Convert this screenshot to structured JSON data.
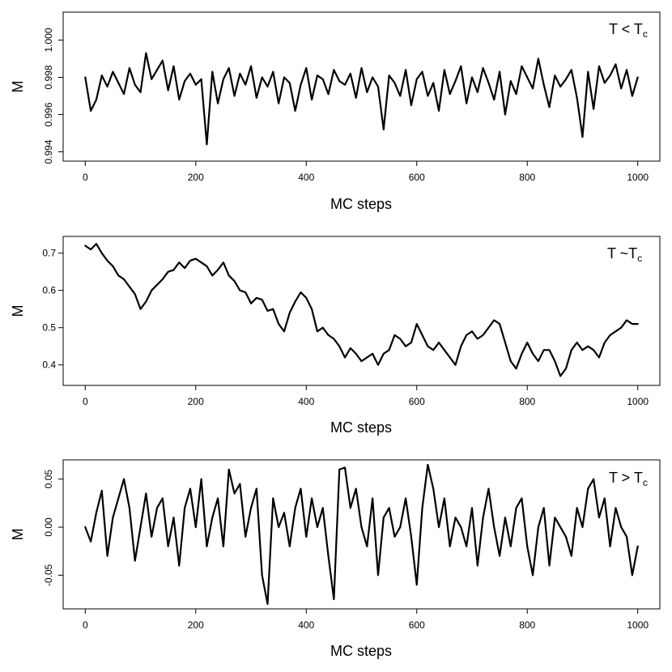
{
  "chart_data": [
    {
      "type": "line",
      "xlabel": "MC steps",
      "ylabel": "M",
      "annotation": {
        "text": "T < T",
        "sub": "c"
      },
      "annotation_position": "top-right",
      "xlim": [
        -40,
        1040
      ],
      "ylim": [
        0.9935,
        1.0015
      ],
      "xticks": [
        0,
        200,
        400,
        600,
        800,
        1000
      ],
      "yticks": [
        0.994,
        0.996,
        0.998,
        1.0
      ],
      "ytick_labels": [
        "0.994",
        "0.996",
        "0.998",
        "1.000"
      ],
      "ytick_rotated": true,
      "grid": false,
      "series": [
        {
          "x": [
            0,
            10,
            20,
            30,
            40,
            50,
            60,
            70,
            80,
            90,
            100,
            110,
            120,
            130,
            140,
            150,
            160,
            170,
            180,
            190,
            200,
            210,
            220,
            230,
            240,
            250,
            260,
            270,
            280,
            290,
            300,
            310,
            320,
            330,
            340,
            350,
            360,
            370,
            380,
            390,
            400,
            410,
            420,
            430,
            440,
            450,
            460,
            470,
            480,
            490,
            500,
            510,
            520,
            530,
            540,
            550,
            560,
            570,
            580,
            590,
            600,
            610,
            620,
            630,
            640,
            650,
            660,
            670,
            680,
            690,
            700,
            710,
            720,
            730,
            740,
            750,
            760,
            770,
            780,
            790,
            800,
            810,
            820,
            830,
            840,
            850,
            860,
            870,
            880,
            890,
            900,
            910,
            920,
            930,
            940,
            950,
            960,
            970,
            980,
            990,
            1000
          ],
          "values": [
            0.998,
            0.9962,
            0.9968,
            0.9981,
            0.9975,
            0.9983,
            0.9977,
            0.9971,
            0.9985,
            0.9976,
            0.9972,
            0.9993,
            0.9979,
            0.9984,
            0.9989,
            0.9973,
            0.9986,
            0.9968,
            0.9978,
            0.9982,
            0.9976,
            0.9979,
            0.9944,
            0.9983,
            0.9966,
            0.9979,
            0.9985,
            0.997,
            0.9982,
            0.9976,
            0.9986,
            0.9969,
            0.998,
            0.9975,
            0.9983,
            0.9966,
            0.998,
            0.9977,
            0.9962,
            0.9976,
            0.9985,
            0.9968,
            0.9981,
            0.9979,
            0.9971,
            0.9984,
            0.9978,
            0.9976,
            0.9982,
            0.9969,
            0.9985,
            0.9972,
            0.998,
            0.9975,
            0.9952,
            0.9981,
            0.9977,
            0.997,
            0.9984,
            0.9965,
            0.9979,
            0.9983,
            0.997,
            0.9977,
            0.9962,
            0.9984,
            0.9971,
            0.9978,
            0.9986,
            0.9966,
            0.998,
            0.9972,
            0.9985,
            0.9977,
            0.9968,
            0.9983,
            0.996,
            0.9978,
            0.9971,
            0.9986,
            0.998,
            0.9974,
            0.999,
            0.9976,
            0.9964,
            0.9981,
            0.9975,
            0.9979,
            0.9984,
            0.9969,
            0.9948,
            0.9983,
            0.9963,
            0.9986,
            0.9977,
            0.9981,
            0.9987,
            0.9974,
            0.9984,
            0.997,
            0.998
          ]
        }
      ]
    },
    {
      "type": "line",
      "xlabel": "MC steps",
      "ylabel": "M",
      "annotation": {
        "text": "T ~T",
        "sub": "c"
      },
      "annotation_position": "top-right",
      "xlim": [
        -40,
        1040
      ],
      "ylim": [
        0.345,
        0.745
      ],
      "xticks": [
        0,
        200,
        400,
        600,
        800,
        1000
      ],
      "yticks": [
        0.4,
        0.5,
        0.6,
        0.7
      ],
      "ytick_labels": [
        "0.4",
        "0.5",
        "0.6",
        "0.7"
      ],
      "ytick_rotated": false,
      "grid": false,
      "series": [
        {
          "x": [
            0,
            10,
            20,
            30,
            40,
            50,
            60,
            70,
            80,
            90,
            100,
            110,
            120,
            130,
            140,
            150,
            160,
            170,
            180,
            190,
            200,
            210,
            220,
            230,
            240,
            250,
            260,
            270,
            280,
            290,
            300,
            310,
            320,
            330,
            340,
            350,
            360,
            370,
            380,
            390,
            400,
            410,
            420,
            430,
            440,
            450,
            460,
            470,
            480,
            490,
            500,
            510,
            520,
            530,
            540,
            550,
            560,
            570,
            580,
            590,
            600,
            610,
            620,
            630,
            640,
            650,
            660,
            670,
            680,
            690,
            700,
            710,
            720,
            730,
            740,
            750,
            760,
            770,
            780,
            790,
            800,
            810,
            820,
            830,
            840,
            850,
            860,
            870,
            880,
            890,
            900,
            910,
            920,
            930,
            940,
            950,
            960,
            970,
            980,
            990,
            1000
          ],
          "values": [
            0.72,
            0.71,
            0.725,
            0.7,
            0.68,
            0.665,
            0.64,
            0.63,
            0.61,
            0.59,
            0.55,
            0.57,
            0.6,
            0.615,
            0.63,
            0.65,
            0.655,
            0.675,
            0.66,
            0.68,
            0.685,
            0.675,
            0.665,
            0.64,
            0.655,
            0.675,
            0.64,
            0.625,
            0.6,
            0.595,
            0.565,
            0.58,
            0.575,
            0.545,
            0.55,
            0.51,
            0.49,
            0.54,
            0.57,
            0.595,
            0.58,
            0.55,
            0.49,
            0.5,
            0.48,
            0.47,
            0.45,
            0.42,
            0.445,
            0.43,
            0.41,
            0.42,
            0.43,
            0.4,
            0.43,
            0.44,
            0.48,
            0.47,
            0.45,
            0.46,
            0.51,
            0.48,
            0.45,
            0.44,
            0.46,
            0.44,
            0.42,
            0.4,
            0.45,
            0.48,
            0.49,
            0.47,
            0.48,
            0.5,
            0.52,
            0.51,
            0.46,
            0.41,
            0.39,
            0.43,
            0.46,
            0.43,
            0.41,
            0.44,
            0.44,
            0.41,
            0.37,
            0.39,
            0.44,
            0.46,
            0.44,
            0.45,
            0.44,
            0.42,
            0.46,
            0.48,
            0.49,
            0.5,
            0.52,
            0.51,
            0.51
          ]
        }
      ]
    },
    {
      "type": "line",
      "xlabel": "MC steps",
      "ylabel": "M",
      "annotation": {
        "text": "T > T",
        "sub": "c"
      },
      "annotation_position": "top-right",
      "xlim": [
        -40,
        1040
      ],
      "ylim": [
        -0.085,
        0.07
      ],
      "xticks": [
        0,
        200,
        400,
        600,
        800,
        1000
      ],
      "yticks": [
        -0.05,
        0.0,
        0.05
      ],
      "ytick_labels": [
        "-0.05",
        "0.00",
        "0.05"
      ],
      "ytick_rotated": true,
      "grid": false,
      "series": [
        {
          "x": [
            0,
            10,
            20,
            30,
            40,
            50,
            60,
            70,
            80,
            90,
            100,
            110,
            120,
            130,
            140,
            150,
            160,
            170,
            180,
            190,
            200,
            210,
            220,
            230,
            240,
            250,
            260,
            270,
            280,
            290,
            300,
            310,
            320,
            330,
            340,
            350,
            360,
            370,
            380,
            390,
            400,
            410,
            420,
            430,
            440,
            450,
            460,
            470,
            480,
            490,
            500,
            510,
            520,
            530,
            540,
            550,
            560,
            570,
            580,
            590,
            600,
            610,
            620,
            630,
            640,
            650,
            660,
            670,
            680,
            690,
            700,
            710,
            720,
            730,
            740,
            750,
            760,
            770,
            780,
            790,
            800,
            810,
            820,
            830,
            840,
            850,
            860,
            870,
            880,
            890,
            900,
            910,
            920,
            930,
            940,
            950,
            960,
            970,
            980,
            990,
            1000
          ],
          "values": [
            0.0,
            -0.015,
            0.015,
            0.038,
            -0.03,
            0.01,
            0.03,
            0.05,
            0.02,
            -0.035,
            0.0,
            0.035,
            -0.01,
            0.02,
            0.03,
            -0.02,
            0.01,
            -0.04,
            0.02,
            0.04,
            0.0,
            0.05,
            -0.02,
            0.01,
            0.03,
            -0.02,
            0.06,
            0.035,
            0.045,
            -0.01,
            0.02,
            0.04,
            -0.05,
            -0.08,
            0.03,
            0.0,
            0.015,
            -0.02,
            0.02,
            0.04,
            -0.01,
            0.03,
            0.0,
            0.02,
            -0.03,
            -0.075,
            0.06,
            0.062,
            0.02,
            0.04,
            0.0,
            -0.02,
            0.03,
            -0.05,
            0.01,
            0.02,
            -0.01,
            0.0,
            0.03,
            -0.01,
            -0.06,
            0.02,
            0.065,
            0.04,
            0.0,
            0.03,
            -0.02,
            0.01,
            0.0,
            -0.02,
            0.02,
            -0.04,
            0.01,
            0.04,
            0.0,
            -0.03,
            0.01,
            -0.02,
            0.02,
            0.03,
            -0.02,
            -0.05,
            0.0,
            0.02,
            -0.04,
            0.01,
            0.0,
            -0.01,
            -0.03,
            0.02,
            0.0,
            0.04,
            0.05,
            0.01,
            0.03,
            -0.02,
            0.02,
            0.0,
            -0.01,
            -0.05,
            -0.02
          ]
        }
      ]
    }
  ]
}
